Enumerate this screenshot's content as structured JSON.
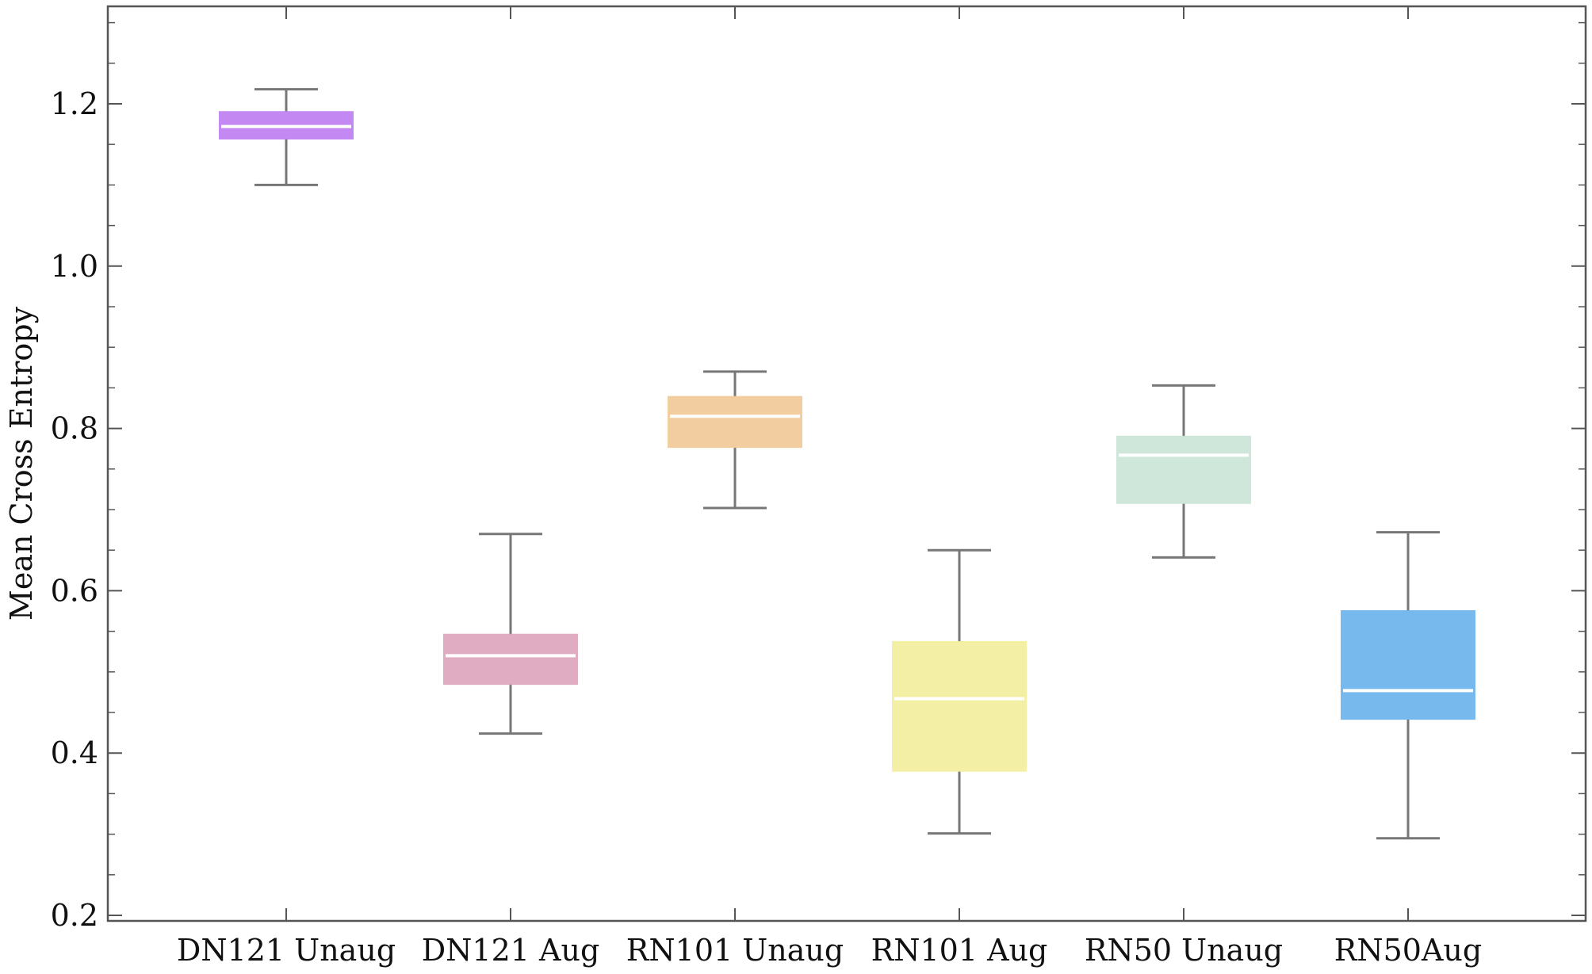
{
  "chart_data": {
    "type": "box",
    "title": "",
    "xlabel": "",
    "ylabel": "Mean Cross Entropy",
    "ylim": [
      0.2,
      1.32
    ],
    "yticks": [
      0.2,
      0.4,
      0.6,
      0.8,
      1.0,
      1.2
    ],
    "ytick_labels": [
      "0.2",
      "0.4",
      "0.6",
      "0.8",
      "1.0",
      "1.2"
    ],
    "grid": false,
    "legend": null,
    "categories": [
      "DN121 Unaug",
      "DN121 Aug",
      "RN101 Unaug",
      "RN101 Aug",
      "RN50 Unaug",
      "RN50Aug"
    ],
    "boxes": [
      {
        "name": "DN121 Unaug",
        "whisker_low": 1.1,
        "q1": 1.157,
        "median": 1.172,
        "q3": 1.19,
        "whisker_high": 1.218,
        "color": "#c07ef2"
      },
      {
        "name": "DN121 Aug",
        "whisker_low": 0.424,
        "q1": 0.485,
        "median": 0.52,
        "q3": 0.546,
        "whisker_high": 0.67,
        "color": "#dea6bd"
      },
      {
        "name": "RN101 Unaug",
        "whisker_low": 0.702,
        "q1": 0.777,
        "median": 0.815,
        "q3": 0.839,
        "whisker_high": 0.87,
        "color": "#f1c997"
      },
      {
        "name": "RN101 Aug",
        "whisker_low": 0.301,
        "q1": 0.378,
        "median": 0.467,
        "q3": 0.537,
        "whisker_high": 0.65,
        "color": "#f3ef9e"
      },
      {
        "name": "RN50 Unaug",
        "whisker_low": 0.641,
        "q1": 0.708,
        "median": 0.767,
        "q3": 0.79,
        "whisker_high": 0.853,
        "color": "#cce6d7"
      },
      {
        "name": "RN50Aug",
        "whisker_low": 0.295,
        "q1": 0.442,
        "median": 0.477,
        "q3": 0.575,
        "whisker_high": 0.672,
        "color": "#6db4ec"
      }
    ]
  },
  "colors": {
    "axis": "#555555",
    "whisker": "#777777",
    "median": "#ffffff"
  }
}
